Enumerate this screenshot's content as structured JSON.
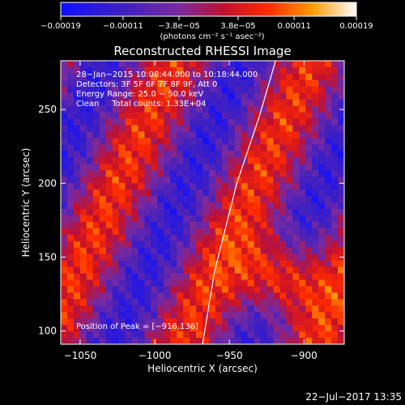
{
  "chart_data": {
    "type": "heatmap",
    "title": "Reconstructed RHESSI Image",
    "xlabel": "Heliocentric X (arcsec)",
    "ylabel": "Heliocentric Y (arcsec)",
    "xlim": [
      -1063,
      -873
    ],
    "ylim": [
      91,
      283
    ],
    "x_ticks": [
      -1050,
      -1000,
      -950,
      -900
    ],
    "x_tick_labels": [
      "−1050",
      "−1000",
      "−950",
      "−900"
    ],
    "y_ticks": [
      100,
      150,
      200,
      250
    ],
    "y_tick_labels": [
      "100",
      "150",
      "200",
      "250"
    ],
    "colorbar": {
      "range": [
        -0.00019,
        0.00019
      ],
      "ticks": [
        -0.00019,
        -0.00011,
        -3.8e-05,
        3.8e-05,
        0.00011,
        0.00019
      ],
      "tick_labels": [
        "−0.00019",
        "−0.00011",
        "−3.8e−05",
        "3.8e−05",
        "0.00011",
        "0.00019"
      ],
      "units": "(photons cm⁻² s⁻¹ asec⁻²)"
    },
    "annotations": [
      "28−Jan−2015 10:08:44.000 to 10:18:44.000",
      "Detectors: 3F 5F 6F 7F 8F 9F, Att 0",
      "Energy Range: 25.0 − 50.0 keV",
      "Clean     Total counts: 1.33E+04"
    ],
    "peak_label": "Position of Peak = [−916,136]",
    "peak": [
      -916,
      136
    ],
    "limb_curve": [
      [
        -968,
        91
      ],
      [
        -960,
        140
      ],
      [
        -945,
        200
      ],
      [
        -930,
        245
      ],
      [
        -919,
        283
      ]
    ],
    "grid": false
  },
  "footer": {
    "date": "22−Jul−2017 13:35"
  }
}
